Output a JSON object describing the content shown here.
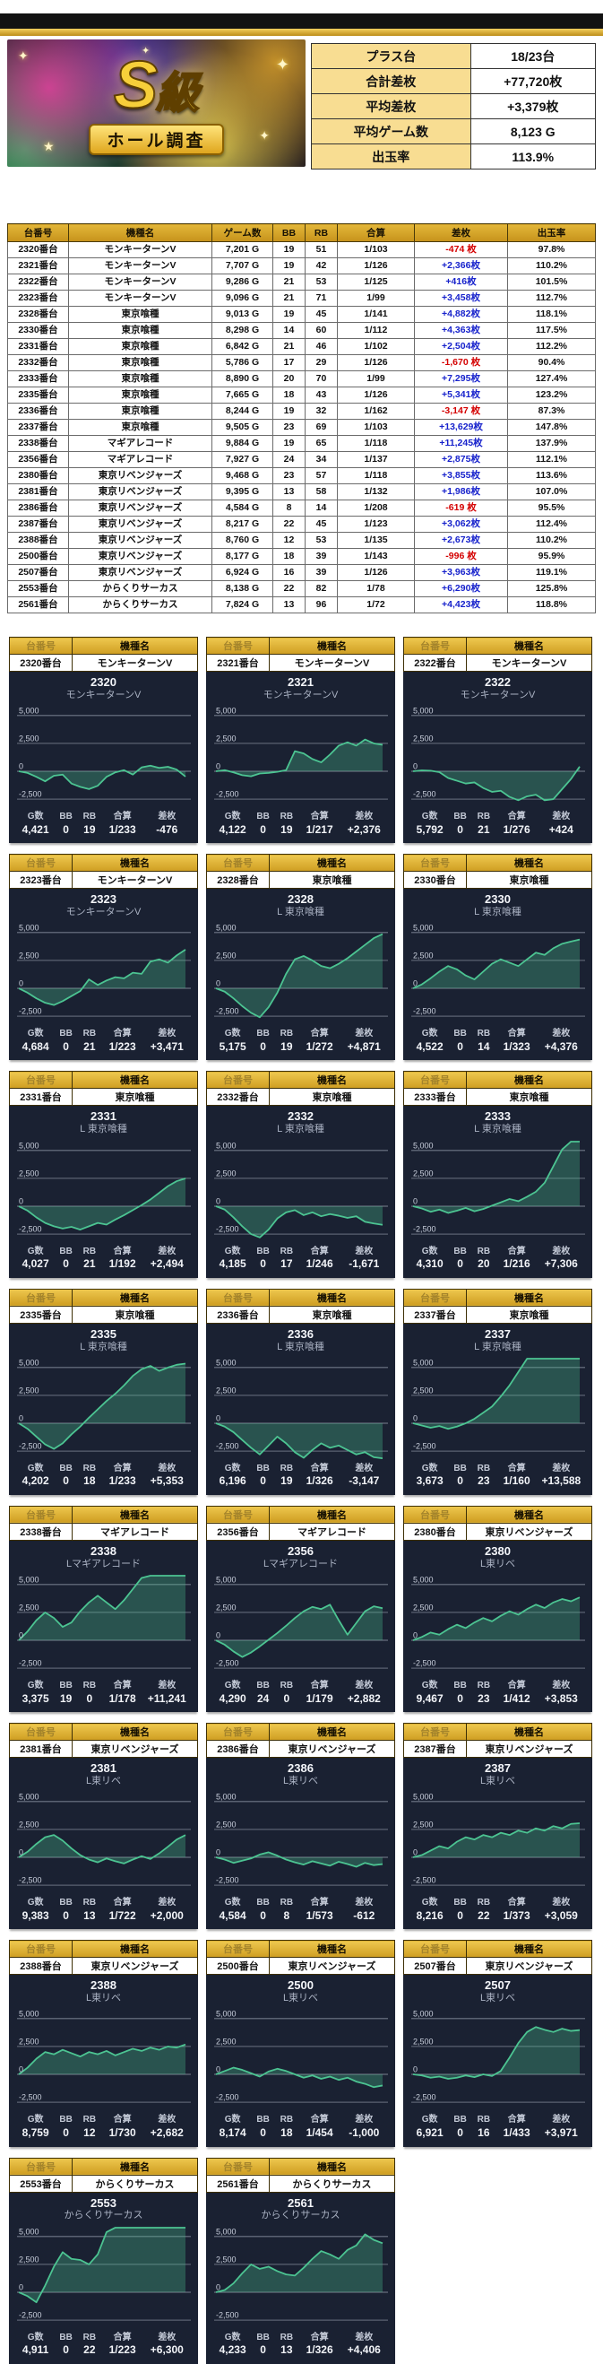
{
  "badge": {
    "s": "S",
    "kyu": "級",
    "ribbon": "ホール調査",
    "sparkles": [
      "✦",
      "✦",
      "★",
      "✦",
      "✦"
    ]
  },
  "summary": {
    "rows": [
      {
        "label": "プラス台",
        "value": "18/23台"
      },
      {
        "label": "合計差枚",
        "value": "+77,720枚"
      },
      {
        "label": "平均差枚",
        "value": "+3,379枚"
      },
      {
        "label": "平均ゲーム数",
        "value": "8,123 G"
      },
      {
        "label": "出玉率",
        "value": "113.9%"
      }
    ]
  },
  "main_table": {
    "columns": [
      "台番号",
      "機種名",
      "ゲーム数",
      "BB",
      "RB",
      "合算",
      "差枚",
      "出玉率"
    ],
    "rows": [
      [
        "2320番台",
        "モンキーターンV",
        "7,201 G",
        "19",
        "51",
        "1/103",
        "-474 枚",
        "97.8%"
      ],
      [
        "2321番台",
        "モンキーターンV",
        "7,707 G",
        "19",
        "42",
        "1/126",
        "+2,366枚",
        "110.2%"
      ],
      [
        "2322番台",
        "モンキーターンV",
        "9,286 G",
        "21",
        "53",
        "1/125",
        "+416枚",
        "101.5%"
      ],
      [
        "2323番台",
        "モンキーターンV",
        "9,096 G",
        "21",
        "71",
        "1/99",
        "+3,458枚",
        "112.7%"
      ],
      [
        "2328番台",
        "東京喰種",
        "9,013 G",
        "19",
        "45",
        "1/141",
        "+4,882枚",
        "118.1%"
      ],
      [
        "2330番台",
        "東京喰種",
        "8,298 G",
        "14",
        "60",
        "1/112",
        "+4,363枚",
        "117.5%"
      ],
      [
        "2331番台",
        "東京喰種",
        "6,842 G",
        "21",
        "46",
        "1/102",
        "+2,504枚",
        "112.2%"
      ],
      [
        "2332番台",
        "東京喰種",
        "5,786 G",
        "17",
        "29",
        "1/126",
        "-1,670 枚",
        "90.4%"
      ],
      [
        "2333番台",
        "東京喰種",
        "8,890 G",
        "20",
        "70",
        "1/99",
        "+7,295枚",
        "127.4%"
      ],
      [
        "2335番台",
        "東京喰種",
        "7,665 G",
        "18",
        "43",
        "1/126",
        "+5,341枚",
        "123.2%"
      ],
      [
        "2336番台",
        "東京喰種",
        "8,244 G",
        "19",
        "32",
        "1/162",
        "-3,147 枚",
        "87.3%"
      ],
      [
        "2337番台",
        "東京喰種",
        "9,505 G",
        "23",
        "69",
        "1/103",
        "+13,629枚",
        "147.8%"
      ],
      [
        "2338番台",
        "マギアレコード",
        "9,884 G",
        "19",
        "65",
        "1/118",
        "+11,245枚",
        "137.9%"
      ],
      [
        "2356番台",
        "マギアレコード",
        "7,927 G",
        "24",
        "34",
        "1/137",
        "+2,875枚",
        "112.1%"
      ],
      [
        "2380番台",
        "東京リベンジャーズ",
        "9,468 G",
        "23",
        "57",
        "1/118",
        "+3,855枚",
        "113.6%"
      ],
      [
        "2381番台",
        "東京リベンジャーズ",
        "9,395 G",
        "13",
        "58",
        "1/132",
        "+1,986枚",
        "107.0%"
      ],
      [
        "2386番台",
        "東京リベンジャーズ",
        "4,584 G",
        "8",
        "14",
        "1/208",
        "-619 枚",
        "95.5%"
      ],
      [
        "2387番台",
        "東京リベンジャーズ",
        "8,217 G",
        "22",
        "45",
        "1/123",
        "+3,062枚",
        "112.4%"
      ],
      [
        "2388番台",
        "東京リベンジャーズ",
        "8,760 G",
        "12",
        "53",
        "1/135",
        "+2,673枚",
        "110.2%"
      ],
      [
        "2500番台",
        "東京リベンジャーズ",
        "8,177 G",
        "18",
        "39",
        "1/143",
        "-996 枚",
        "95.9%"
      ],
      [
        "2507番台",
        "東京リベンジャーズ",
        "6,924 G",
        "16",
        "39",
        "1/126",
        "+3,963枚",
        "119.1%"
      ],
      [
        "2553番台",
        "からくりサーカス",
        "8,138 G",
        "22",
        "82",
        "1/78",
        "+6,290枚",
        "125.8%"
      ],
      [
        "2561番台",
        "からくりサーカス",
        "7,824 G",
        "13",
        "96",
        "1/72",
        "+4,423枚",
        "118.8%"
      ]
    ]
  },
  "card_labels": {
    "no": "台番号",
    "name": "機種名",
    "g": "G数",
    "bb": "BB",
    "rb": "RB",
    "gassan": "合算",
    "sa": "差枚"
  },
  "chart_axis": [
    "5,000",
    "2,500",
    "0",
    "-2,500"
  ],
  "colors": {
    "positive": "#1722cc",
    "negative": "#d40000",
    "line": "#4cc492",
    "fill": "rgba(74,190,142,0.32)",
    "panel": "#1a2132"
  },
  "cards": [
    {
      "no": "2320番台",
      "name": "モンキーターンV",
      "title": "2320",
      "sub": "モンキーターンV",
      "g": "4,421",
      "bb": "0",
      "rb": "19",
      "gassan": "1/233",
      "sa": "-476",
      "series": [
        0,
        -150,
        -500,
        -900,
        -400,
        -300,
        -1100,
        -1400,
        -1600,
        -1300,
        -500,
        -100,
        100,
        -300,
        350,
        500,
        300,
        400,
        150,
        -476
      ]
    },
    {
      "no": "2321番台",
      "name": "モンキーターンV",
      "title": "2321",
      "sub": "モンキーターンV",
      "g": "4,122",
      "bb": "0",
      "rb": "19",
      "gassan": "1/217",
      "sa": "+2,376",
      "series": [
        0,
        100,
        -100,
        -350,
        -450,
        -200,
        -150,
        -50,
        100,
        1800,
        1600,
        1100,
        800,
        1500,
        2300,
        2600,
        2300,
        2850,
        2500,
        2376
      ]
    },
    {
      "no": "2322番台",
      "name": "モンキーターンV",
      "title": "2322",
      "sub": "モンキーターンV",
      "g": "5,792",
      "bb": "0",
      "rb": "21",
      "gassan": "1/276",
      "sa": "+424",
      "series": [
        0,
        80,
        50,
        -80,
        -600,
        -850,
        -1100,
        -1000,
        -1500,
        -1850,
        -1750,
        -2300,
        -2600,
        -2250,
        -2100,
        -2600,
        -2500,
        -1600,
        -700,
        424
      ]
    },
    {
      "no": "2323番台",
      "name": "モンキーターンV",
      "title": "2323",
      "sub": "モンキーターンV",
      "g": "4,684",
      "bb": "0",
      "rb": "21",
      "gassan": "1/223",
      "sa": "+3,471",
      "series": [
        0,
        -400,
        -900,
        -1300,
        -1500,
        -1150,
        -700,
        -250,
        800,
        300,
        700,
        1000,
        900,
        1400,
        1300,
        2400,
        2600,
        2300,
        2950,
        3471
      ]
    },
    {
      "no": "2328番台",
      "name": "東京喰種",
      "title": "2328",
      "sub": "L 東京喰種",
      "g": "5,175",
      "bb": "0",
      "rb": "19",
      "gassan": "1/272",
      "sa": "+4,871",
      "series": [
        0,
        -300,
        -900,
        -1600,
        -2200,
        -2600,
        -1700,
        -400,
        1300,
        2600,
        2900,
        2500,
        2000,
        1800,
        2200,
        2700,
        3300,
        3900,
        4500,
        4871
      ]
    },
    {
      "no": "2330番台",
      "name": "東京喰種",
      "title": "2330",
      "sub": "L 東京喰種",
      "g": "4,522",
      "bb": "0",
      "rb": "14",
      "gassan": "1/323",
      "sa": "+4,376",
      "series": [
        0,
        350,
        900,
        1500,
        2000,
        1700,
        1150,
        800,
        1500,
        2200,
        2600,
        2300,
        2000,
        2600,
        3200,
        3000,
        3600,
        4000,
        4200,
        4376
      ]
    },
    {
      "no": "2331番台",
      "name": "東京喰種",
      "title": "2331",
      "sub": "L 東京喰種",
      "g": "4,027",
      "bb": "0",
      "rb": "21",
      "gassan": "1/192",
      "sa": "+2,494",
      "series": [
        0,
        -400,
        -1000,
        -1500,
        -1800,
        -2000,
        -1850,
        -2100,
        -1800,
        -1500,
        -1650,
        -1200,
        -800,
        -350,
        100,
        600,
        1200,
        1800,
        2250,
        2494
      ]
    },
    {
      "no": "2332番台",
      "name": "東京喰種",
      "title": "2332",
      "sub": "L 東京喰種",
      "g": "4,185",
      "bb": "0",
      "rb": "17",
      "gassan": "1/246",
      "sa": "-1,671",
      "series": [
        0,
        -300,
        -1000,
        -1800,
        -2500,
        -2800,
        -2100,
        -1100,
        -550,
        -350,
        -800,
        -550,
        -900,
        -700,
        -850,
        -1050,
        -900,
        -1400,
        -1550,
        -1671
      ]
    },
    {
      "no": "2333番台",
      "name": "東京喰種",
      "title": "2333",
      "sub": "L 東京喰種",
      "g": "4,310",
      "bb": "0",
      "rb": "20",
      "gassan": "1/216",
      "sa": "+7,306",
      "series": [
        0,
        -200,
        -500,
        -300,
        -600,
        -400,
        -150,
        -450,
        -250,
        50,
        350,
        650,
        450,
        850,
        1300,
        2100,
        3600,
        5100,
        6800,
        7306
      ]
    },
    {
      "no": "2335番台",
      "name": "東京喰種",
      "title": "2335",
      "sub": "L 東京喰種",
      "g": "4,202",
      "bb": "0",
      "rb": "18",
      "gassan": "1/233",
      "sa": "+5,353",
      "series": [
        0,
        -500,
        -1200,
        -1900,
        -2300,
        -1800,
        -1000,
        -300,
        500,
        1250,
        2000,
        2650,
        3400,
        4250,
        4850,
        5150,
        4700,
        5000,
        5250,
        5353
      ]
    },
    {
      "no": "2336番台",
      "name": "東京喰種",
      "title": "2336",
      "sub": "L 東京喰種",
      "g": "6,196",
      "bb": "0",
      "rb": "19",
      "gassan": "1/326",
      "sa": "-3,147",
      "series": [
        0,
        -300,
        -800,
        -1500,
        -2200,
        -2800,
        -2000,
        -1200,
        -1800,
        -2600,
        -3100,
        -2400,
        -1800,
        -2200,
        -2000,
        -2400,
        -2800,
        -2600,
        -3050,
        -3147
      ]
    },
    {
      "no": "2337番台",
      "name": "東京喰種",
      "title": "2337",
      "sub": "L 東京喰種",
      "g": "3,673",
      "bb": "0",
      "rb": "23",
      "gassan": "1/160",
      "sa": "+13,588",
      "series": [
        0,
        -200,
        -400,
        -250,
        -500,
        -300,
        0,
        400,
        950,
        1500,
        2400,
        3400,
        4600,
        5800,
        7000,
        8600,
        10200,
        11800,
        13000,
        13588
      ]
    },
    {
      "no": "2338番台",
      "name": "マギアレコード",
      "title": "2338",
      "sub": "Lマギアレコード",
      "g": "3,375",
      "bb": "19",
      "rb": "0",
      "gassan": "1/178",
      "sa": "+11,241",
      "series": [
        0,
        800,
        1800,
        2500,
        2000,
        1200,
        1600,
        2600,
        3400,
        4000,
        3400,
        2800,
        3600,
        4600,
        5600,
        7000,
        8500,
        9900,
        10800,
        11241
      ]
    },
    {
      "no": "2356番台",
      "name": "マギアレコード",
      "title": "2356",
      "sub": "Lマギアレコード",
      "g": "4,290",
      "bb": "24",
      "rb": "0",
      "gassan": "1/179",
      "sa": "+2,882",
      "series": [
        0,
        -400,
        -1000,
        -1500,
        -1100,
        -550,
        50,
        650,
        1300,
        2000,
        2600,
        3000,
        2800,
        3200,
        1800,
        500,
        1550,
        2600,
        3050,
        2882
      ]
    },
    {
      "no": "2380番台",
      "name": "東京リベンジャーズ",
      "title": "2380",
      "sub": "L東リベ",
      "g": "9,467",
      "bb": "0",
      "rb": "23",
      "gassan": "1/412",
      "sa": "+3,853",
      "series": [
        0,
        300,
        700,
        500,
        1000,
        1400,
        1100,
        1600,
        2000,
        1700,
        2200,
        2600,
        2300,
        2800,
        3200,
        2900,
        3400,
        3700,
        3500,
        3853
      ]
    },
    {
      "no": "2381番台",
      "name": "東京リベンジャーズ",
      "title": "2381",
      "sub": "L東リベ",
      "g": "9,383",
      "bb": "0",
      "rb": "13",
      "gassan": "1/722",
      "sa": "+2,000",
      "series": [
        0,
        500,
        1200,
        1800,
        2000,
        1500,
        800,
        200,
        -200,
        -450,
        -100,
        -350,
        -550,
        -200,
        100,
        -150,
        350,
        950,
        1600,
        2000
      ]
    },
    {
      "no": "2386番台",
      "name": "東京リベンジャーズ",
      "title": "2386",
      "sub": "L東リベ",
      "g": "4,584",
      "bb": "0",
      "rb": "8",
      "gassan": "1/573",
      "sa": "-612",
      "series": [
        0,
        -200,
        -500,
        -300,
        -100,
        250,
        450,
        150,
        -200,
        -450,
        -650,
        -350,
        -550,
        -750,
        -400,
        -600,
        -850,
        -500,
        -700,
        -612
      ]
    },
    {
      "no": "2387番台",
      "name": "東京リベンジャーズ",
      "title": "2387",
      "sub": "L東リベ",
      "g": "8,216",
      "bb": "0",
      "rb": "22",
      "gassan": "1/373",
      "sa": "+3,059",
      "series": [
        0,
        200,
        600,
        1000,
        800,
        1400,
        1800,
        1600,
        2000,
        1800,
        2200,
        2000,
        2400,
        2200,
        2600,
        2400,
        2800,
        2600,
        3000,
        3059
      ]
    },
    {
      "no": "2388番台",
      "name": "東京リベンジャーズ",
      "title": "2388",
      "sub": "L東リベ",
      "g": "8,759",
      "bb": "0",
      "rb": "12",
      "gassan": "1/730",
      "sa": "+2,682",
      "series": [
        0,
        600,
        1400,
        2000,
        1800,
        2200,
        1900,
        1600,
        2000,
        1800,
        2100,
        1700,
        2000,
        2300,
        2100,
        2400,
        2200,
        2500,
        2400,
        2682
      ]
    },
    {
      "no": "2500番台",
      "name": "東京リベンジャーズ",
      "title": "2500",
      "sub": "L東リベ",
      "g": "8,174",
      "bb": "0",
      "rb": "18",
      "gassan": "1/454",
      "sa": "-1,000",
      "series": [
        0,
        300,
        600,
        400,
        100,
        -200,
        250,
        500,
        300,
        0,
        -300,
        -100,
        -400,
        -200,
        -500,
        -300,
        -650,
        -850,
        -1150,
        -1000
      ]
    },
    {
      "no": "2507番台",
      "name": "東京リベンジャーズ",
      "title": "2507",
      "sub": "L東リベ",
      "g": "6,921",
      "bb": "0",
      "rb": "16",
      "gassan": "1/433",
      "sa": "+3,971",
      "series": [
        0,
        -100,
        -300,
        -200,
        -400,
        -300,
        -100,
        -250,
        0,
        -150,
        300,
        1500,
        2800,
        3800,
        4250,
        4000,
        3800,
        4100,
        3900,
        3971
      ]
    },
    {
      "no": "2553番台",
      "name": "からくりサーカス",
      "title": "2553",
      "sub": "からくりサーカス",
      "g": "4,911",
      "bb": "0",
      "rb": "22",
      "gassan": "1/223",
      "sa": "+6,300",
      "series": [
        0,
        -350,
        -900,
        600,
        2300,
        3600,
        3000,
        2900,
        2500,
        3400,
        5400,
        6300,
        6300,
        6300,
        6300,
        6300,
        6300,
        6300,
        6300,
        6300
      ]
    },
    {
      "no": "2561番台",
      "name": "からくりサーカス",
      "title": "2561",
      "sub": "からくりサーカス",
      "g": "4,233",
      "bb": "0",
      "rb": "13",
      "gassan": "1/326",
      "sa": "+4,406",
      "series": [
        0,
        200,
        800,
        1700,
        2500,
        2100,
        2300,
        1900,
        1600,
        1500,
        2200,
        3000,
        3700,
        3400,
        3000,
        3800,
        4200,
        5200,
        4700,
        4406
      ]
    }
  ]
}
